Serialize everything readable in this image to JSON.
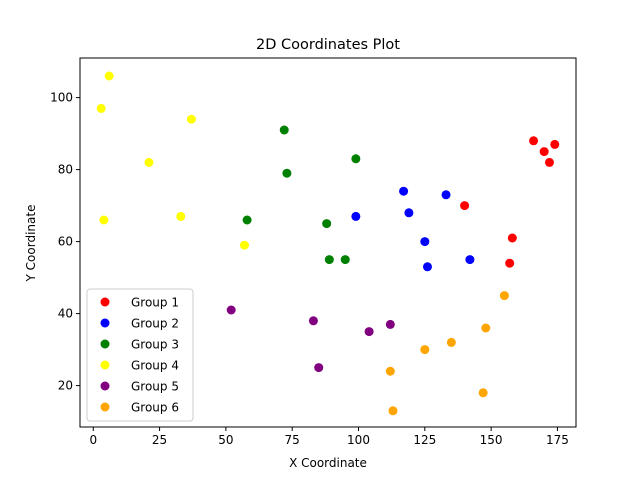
{
  "chart_data": {
    "type": "scatter",
    "title": "2D Coordinates Plot",
    "xlabel": "X Coordinate",
    "ylabel": "Y Coordinate",
    "xlim": [
      -5,
      182
    ],
    "ylim": [
      8.5,
      111
    ],
    "xticks": [
      0,
      25,
      50,
      75,
      100,
      125,
      150,
      175
    ],
    "yticks": [
      20,
      40,
      60,
      80,
      100
    ],
    "grid": false,
    "legend_position": "lower-left",
    "series": [
      {
        "name": "Group 1",
        "color": "#ff0000",
        "points": [
          [
            140,
            70
          ],
          [
            158,
            61
          ],
          [
            157,
            54
          ],
          [
            166,
            88
          ],
          [
            170,
            85
          ],
          [
            172,
            82
          ],
          [
            174,
            87
          ]
        ]
      },
      {
        "name": "Group 2",
        "color": "#0000ff",
        "points": [
          [
            99,
            67
          ],
          [
            117,
            74
          ],
          [
            119,
            68
          ],
          [
            125,
            60
          ],
          [
            126,
            53
          ],
          [
            133,
            73
          ],
          [
            142,
            55
          ]
        ]
      },
      {
        "name": "Group 3",
        "color": "#008000",
        "points": [
          [
            58,
            66
          ],
          [
            72,
            91
          ],
          [
            73,
            79
          ],
          [
            88,
            65
          ],
          [
            89,
            55
          ],
          [
            95,
            55
          ],
          [
            99,
            83
          ]
        ]
      },
      {
        "name": "Group 4",
        "color": "#ffff00",
        "points": [
          [
            3,
            97
          ],
          [
            6,
            106
          ],
          [
            4,
            66
          ],
          [
            21,
            82
          ],
          [
            33,
            67
          ],
          [
            37,
            94
          ],
          [
            57,
            59
          ]
        ]
      },
      {
        "name": "Group 5",
        "color": "#800080",
        "points": [
          [
            52,
            41
          ],
          [
            83,
            38
          ],
          [
            85,
            25
          ],
          [
            104,
            35
          ],
          [
            112,
            37
          ]
        ]
      },
      {
        "name": "Group 6",
        "color": "#ffa500",
        "points": [
          [
            112,
            24
          ],
          [
            113,
            13
          ],
          [
            125,
            30
          ],
          [
            135,
            32
          ],
          [
            147,
            18
          ],
          [
            148,
            36
          ],
          [
            155,
            45
          ]
        ]
      }
    ]
  }
}
